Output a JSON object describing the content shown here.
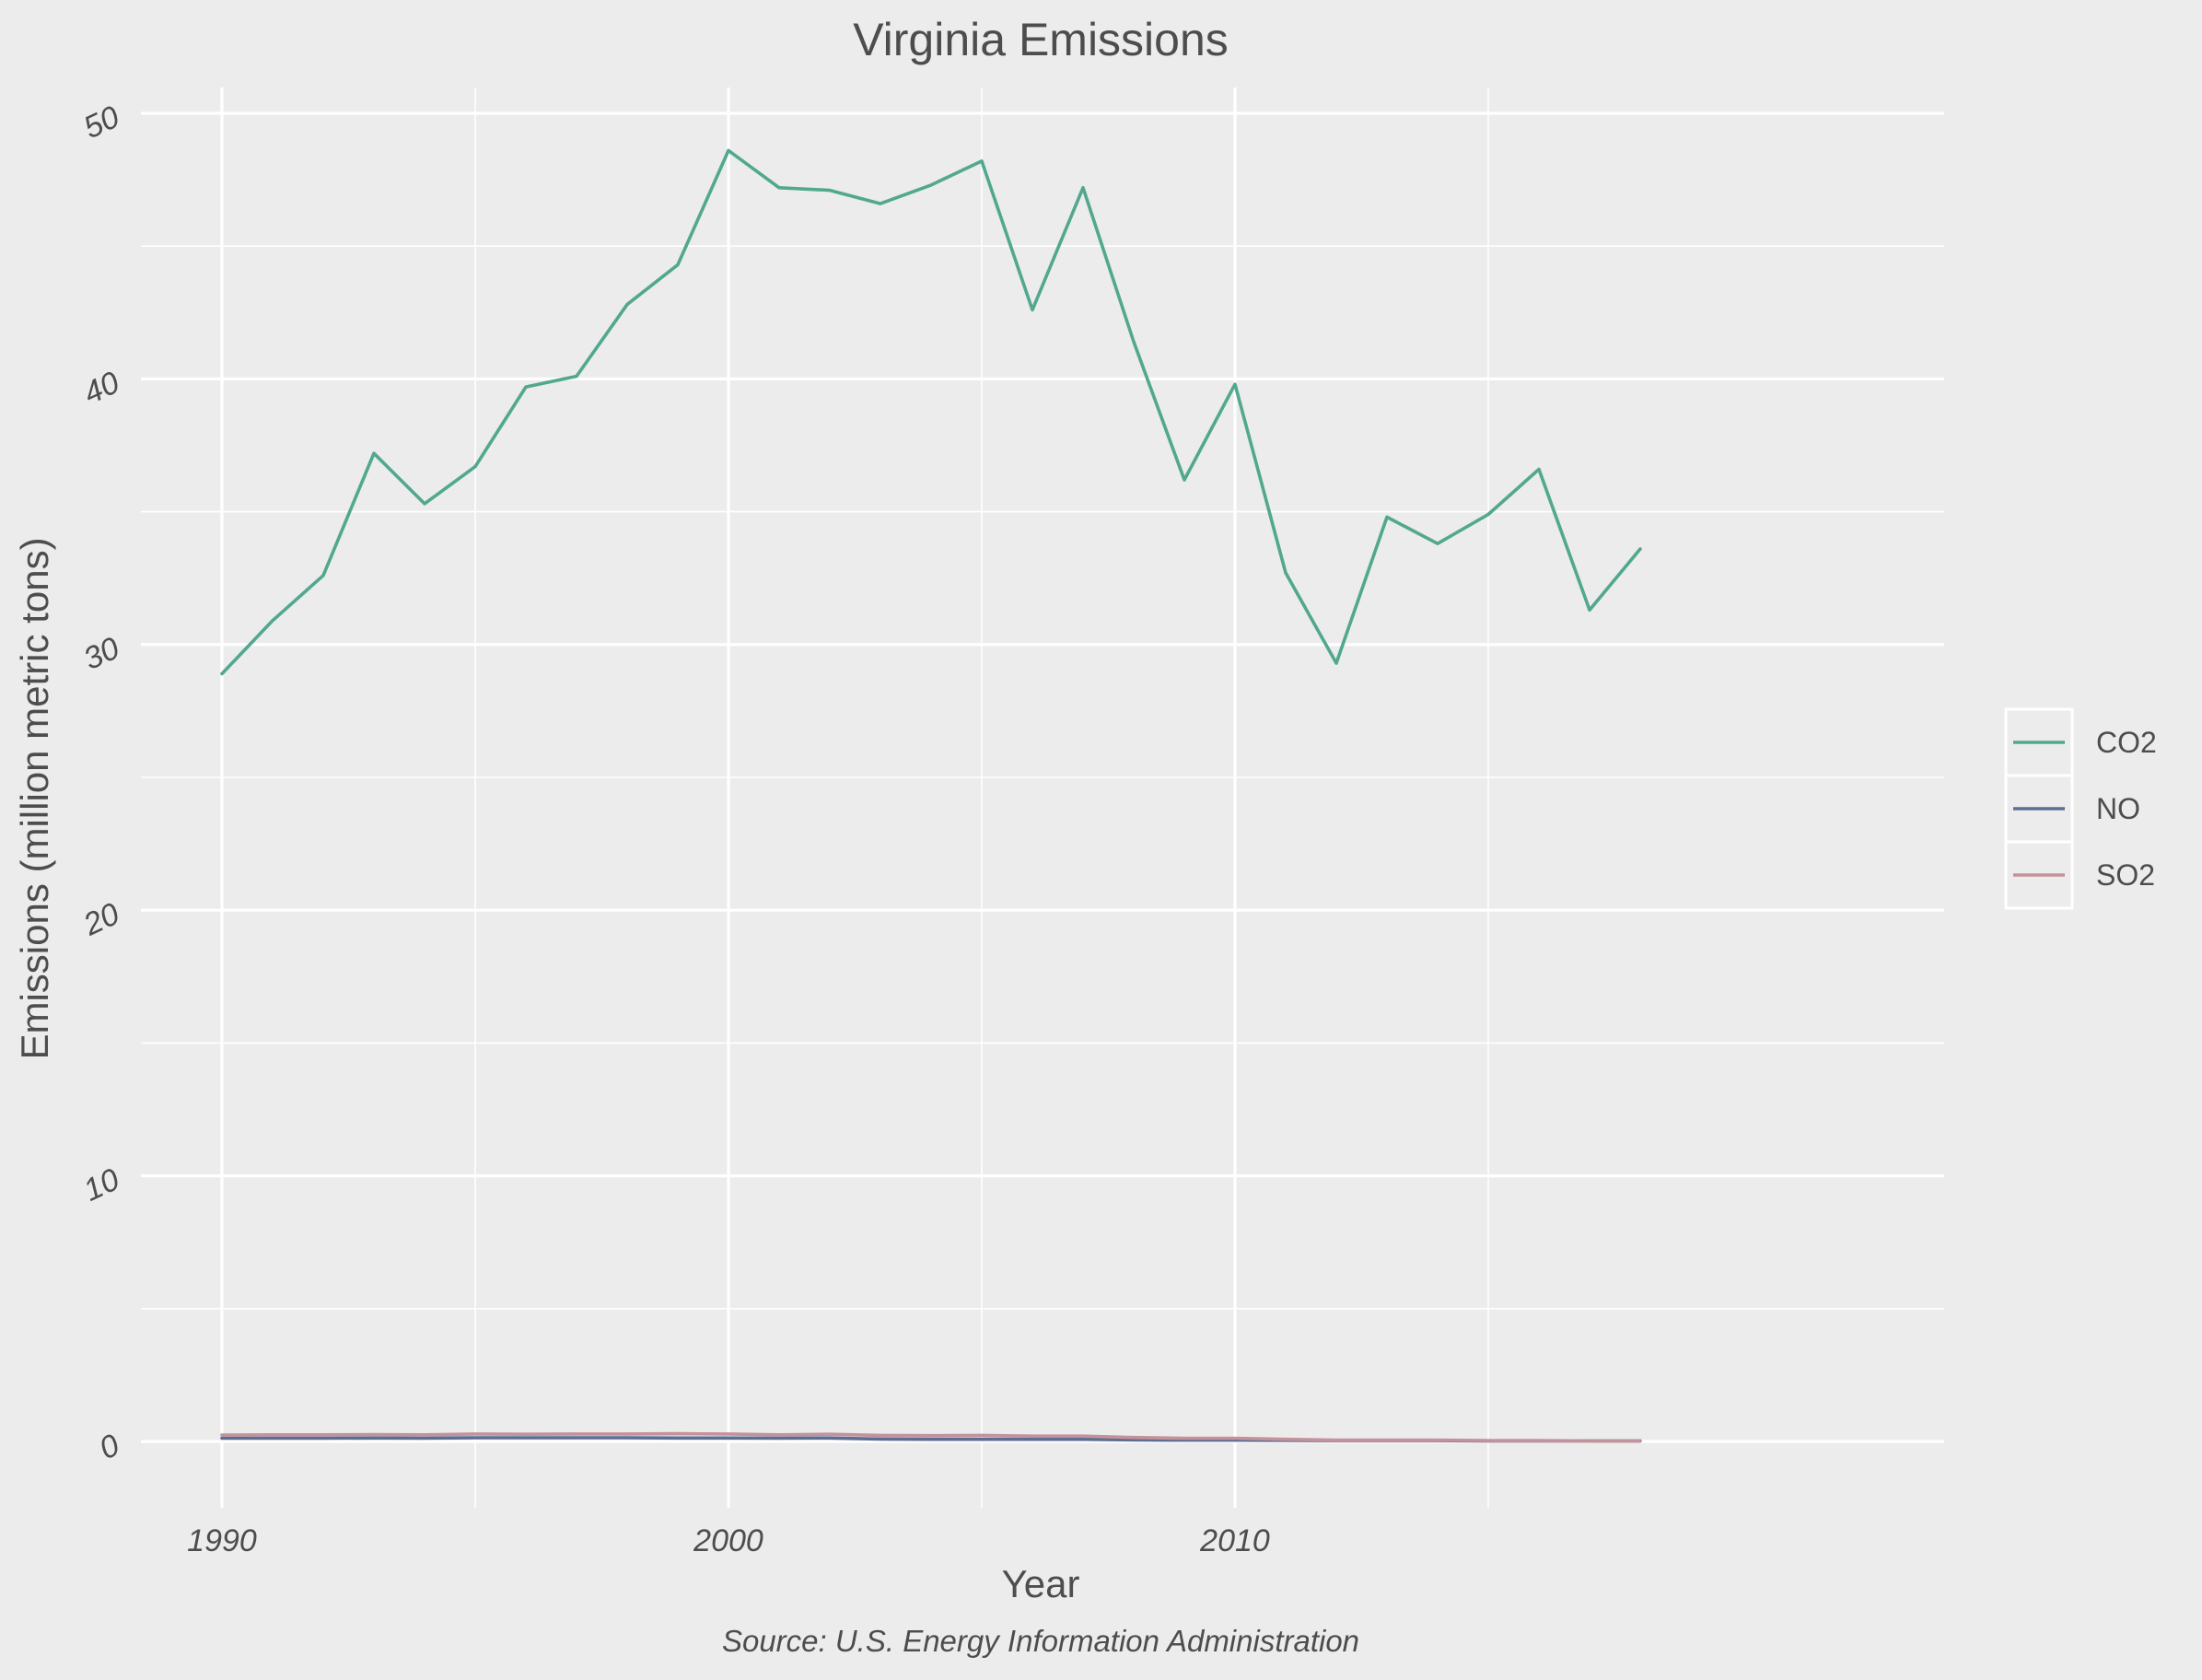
{
  "chart_data": {
    "type": "line",
    "title": "Virginia Emissions",
    "xlabel": "Year",
    "ylabel": "Emissions (million metric tons)",
    "caption": "Source: U.S. Energy Information Administration",
    "xlim": [
      1990,
      2018
    ],
    "ylim": [
      0,
      50
    ],
    "x_ticks": [
      1990,
      2000,
      2010
    ],
    "y_ticks": [
      0,
      10,
      20,
      30,
      40,
      50
    ],
    "x_ticks_labels": [
      "1990",
      "2000",
      "2010"
    ],
    "y_ticks_labels": [
      "0",
      "10",
      "20",
      "30",
      "40",
      "50"
    ],
    "grid": true,
    "legend_position": "right",
    "x": [
      1990,
      1991,
      1992,
      1993,
      1994,
      1995,
      1996,
      1997,
      1998,
      1999,
      2000,
      2001,
      2002,
      2003,
      2004,
      2005,
      2006,
      2007,
      2008,
      2009,
      2010,
      2011,
      2012,
      2013,
      2014,
      2015,
      2016,
      2017,
      2018
    ],
    "series": [
      {
        "name": "CO2",
        "color": "#52a88f",
        "values": [
          28.9,
          30.9,
          32.6,
          37.2,
          35.3,
          36.7,
          39.7,
          40.1,
          42.8,
          44.3,
          48.6,
          47.2,
          47.1,
          46.6,
          47.3,
          48.2,
          42.6,
          47.2,
          41.4,
          36.2,
          39.8,
          32.7,
          29.3,
          34.8,
          33.8,
          34.9,
          36.6,
          31.3,
          33.6
        ]
      },
      {
        "name": "NO",
        "color": "#5c6e94",
        "values": [
          0.12,
          0.12,
          0.12,
          0.13,
          0.12,
          0.14,
          0.14,
          0.14,
          0.14,
          0.13,
          0.13,
          0.12,
          0.13,
          0.09,
          0.08,
          0.08,
          0.08,
          0.08,
          0.06,
          0.05,
          0.05,
          0.04,
          0.03,
          0.03,
          0.03,
          0.02,
          0.02,
          0.02,
          0.02
        ]
      },
      {
        "name": "SO2",
        "color": "#c4929a",
        "values": [
          0.24,
          0.25,
          0.25,
          0.26,
          0.25,
          0.28,
          0.27,
          0.28,
          0.28,
          0.29,
          0.28,
          0.25,
          0.27,
          0.23,
          0.22,
          0.23,
          0.2,
          0.2,
          0.15,
          0.12,
          0.12,
          0.08,
          0.05,
          0.05,
          0.05,
          0.03,
          0.03,
          0.02,
          0.02
        ]
      }
    ]
  }
}
